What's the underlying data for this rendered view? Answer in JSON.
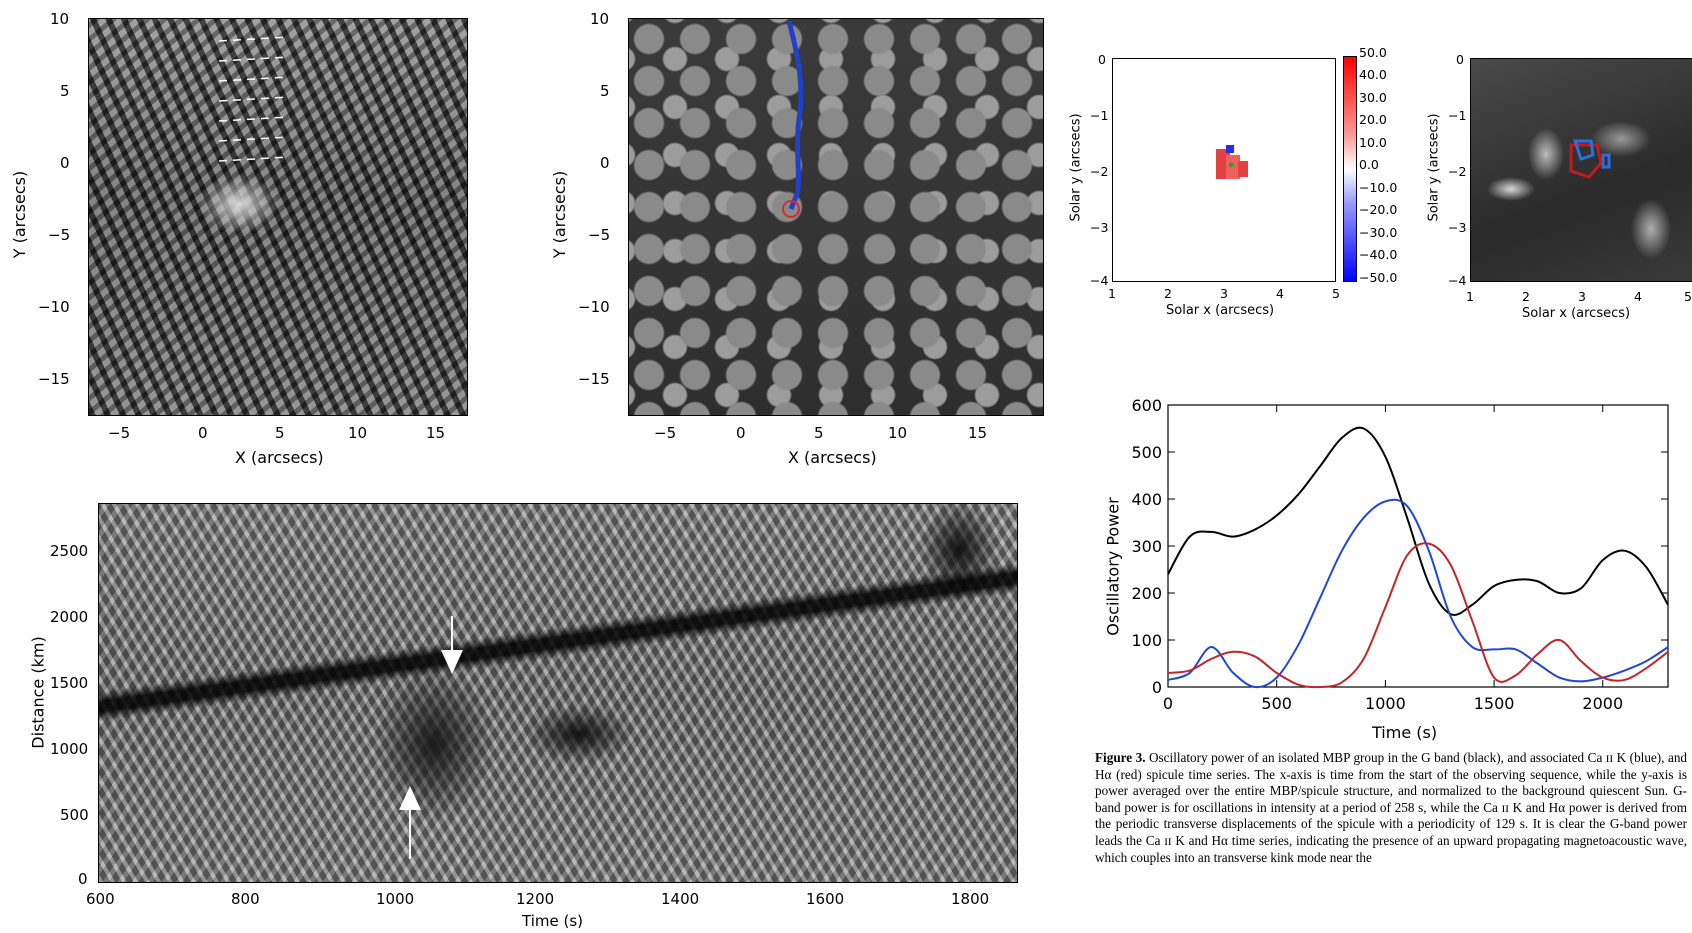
{
  "panel_a": {
    "xlabel": "X (arcsecs)",
    "ylabel": "Y (arcsecs)",
    "xticks": [
      "−5",
      "0",
      "5",
      "10",
      "15"
    ],
    "yticks": [
      "10",
      "5",
      "0",
      "−5",
      "−10",
      "−15"
    ]
  },
  "panel_b": {
    "xlabel": "X (arcsecs)",
    "ylabel": "Y (arcsecs)",
    "xticks": [
      "−5",
      "0",
      "5",
      "10",
      "15"
    ],
    "yticks": [
      "10",
      "5",
      "0",
      "−5",
      "−10",
      "−15"
    ]
  },
  "panel_c": {
    "xlabel": "Solar x (arcsecs)",
    "ylabel": "Solar y (arcsecs)",
    "xticks": [
      "1",
      "2",
      "3",
      "4",
      "5"
    ],
    "yticks": [
      "0",
      "−1",
      "−2",
      "−3",
      "−4"
    ],
    "colorbar_ticks": [
      "50.0",
      "40.0",
      "30.0",
      "20.0",
      "10.0",
      "0.0",
      "−10.0",
      "−20.0",
      "−30.0",
      "−40.0",
      "−50.0"
    ]
  },
  "panel_d": {
    "xlabel": "Solar x (arcsecs)",
    "ylabel": "Solar y (arcsecs)",
    "xticks": [
      "1",
      "2",
      "3",
      "4",
      "5"
    ],
    "yticks": [
      "0",
      "−1",
      "−2",
      "−3",
      "−4"
    ]
  },
  "panel_e": {
    "xlabel": "Time (s)",
    "ylabel": "Distance (km)",
    "xticks": [
      "600",
      "800",
      "1000",
      "1200",
      "1400",
      "1600",
      "1800"
    ],
    "yticks": [
      "2500",
      "2000",
      "1500",
      "1000",
      "500",
      "0"
    ]
  },
  "chart_data": {
    "type": "line",
    "title": "",
    "xlabel": "Time (s)",
    "ylabel": "Oscillatory Power",
    "xlim": [
      0,
      2300
    ],
    "ylim": [
      0,
      600
    ],
    "xticks": [
      0,
      500,
      1000,
      1500,
      2000
    ],
    "yticks": [
      0,
      100,
      200,
      300,
      400,
      500,
      600
    ],
    "grid": false,
    "x": [
      0,
      100,
      200,
      300,
      400,
      500,
      600,
      700,
      800,
      900,
      1000,
      1100,
      1200,
      1300,
      1400,
      1500,
      1600,
      1700,
      1800,
      1900,
      2000,
      2100,
      2200,
      2300
    ],
    "series": [
      {
        "color": "#000000",
        "values": [
          240,
          320,
          330,
          320,
          335,
          365,
          410,
          470,
          530,
          550,
          490,
          360,
          220,
          155,
          175,
          215,
          228,
          225,
          200,
          210,
          270,
          290,
          255,
          175
        ]
      },
      {
        "color": "#2046d6",
        "values": [
          15,
          30,
          85,
          30,
          0,
          20,
          90,
          190,
          290,
          360,
          395,
          385,
          290,
          150,
          85,
          80,
          80,
          50,
          20,
          12,
          20,
          35,
          55,
          85
        ]
      },
      {
        "color": "#c0262b",
        "values": [
          30,
          35,
          60,
          75,
          65,
          30,
          5,
          0,
          10,
          60,
          170,
          280,
          305,
          260,
          140,
          20,
          25,
          70,
          100,
          55,
          20,
          15,
          40,
          75
        ]
      }
    ]
  },
  "caption": {
    "label": "Figure 3.",
    "text": "Oscillatory power of an isolated MBP group in the G band (black), and associated Ca ɪɪ K (blue), and Hα (red) spicule time series. The x-axis is time from the start of the observing sequence, while the y-axis is power averaged over the entire MBP/spicule structure, and normalized to the background quiescent Sun. G-band power is for oscillations in intensity at a period of 258 s, while the Ca ɪɪ K and Hα power is derived from the periodic transverse displacements of the spicule with a periodicity of 129 s. It is clear the G-band power leads the Ca ɪɪ K and Hα time series, indicating the presence of an upward propagating magnetoacoustic wave, which couples into an transverse kink mode near the"
  }
}
